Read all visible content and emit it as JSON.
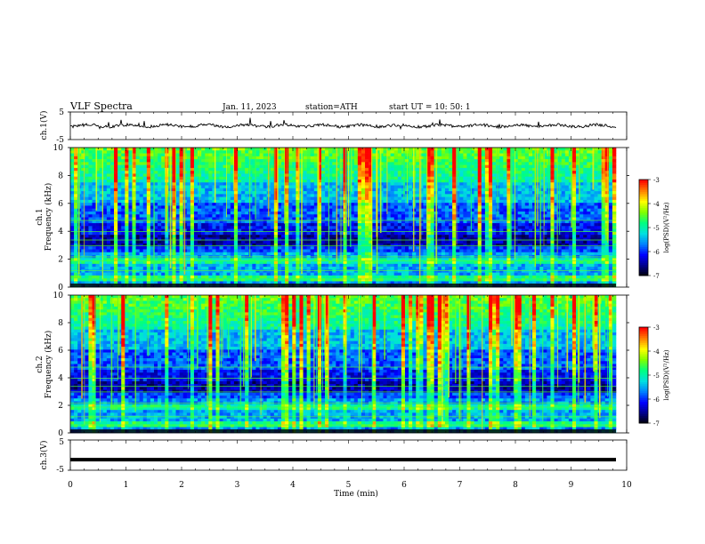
{
  "header": {
    "title": "VLF  Spectra",
    "date": "Jan. 11, 2023",
    "station": "station=ATH",
    "start": "start  UT  =    10: 50: 1"
  },
  "chart_data": [
    {
      "type": "line",
      "name": "ch1-waveform",
      "ylabel": "ch.1(V)",
      "ylim": [
        -5,
        5
      ],
      "yticks": [
        "5",
        "-5"
      ],
      "xlim": [
        0,
        10
      ],
      "description_values_approx": {
        "baseline": 0,
        "amplitude": 1.2
      }
    },
    {
      "type": "heatmap",
      "name": "ch1-spectrogram",
      "ylabel": "ch.1\nFrequency  (kHz)",
      "ylabel_line1": "ch.1",
      "ylabel_line2": "Frequency  (kHz)",
      "ylim": [
        0,
        10
      ],
      "yticks": [
        "0",
        "2",
        "4",
        "6",
        "8",
        "10"
      ],
      "xlim": [
        0,
        9.8
      ],
      "colorbar": {
        "label": "log(PSD)(V²/Hz)",
        "range": [
          -7,
          -3
        ],
        "ticks": [
          "-3",
          "-4",
          "-5",
          "-6",
          "-7"
        ]
      }
    },
    {
      "type": "heatmap",
      "name": "ch2-spectrogram",
      "ylabel_line1": "ch.2",
      "ylabel_line2": "Frequency  (kHz)",
      "ylim": [
        0,
        10
      ],
      "yticks": [
        "0",
        "2",
        "4",
        "6",
        "8",
        "10"
      ],
      "xlim": [
        0,
        9.8
      ],
      "colorbar": {
        "label": "log(PSD)(V²/Hz)",
        "range": [
          -7,
          -3
        ],
        "ticks": [
          "-3",
          "-4",
          "-5",
          "-6",
          "-7"
        ]
      }
    },
    {
      "type": "line",
      "name": "ch3-waveform",
      "ylabel": "ch.3(V)",
      "ylim": [
        -5,
        5
      ],
      "yticks": [
        "5",
        "-5"
      ],
      "xlim": [
        0,
        10
      ],
      "description_values_approx": {
        "baseline": -1.5
      }
    }
  ],
  "xaxis": {
    "label": "Time  (min)",
    "ticks": [
      "0",
      "1",
      "2",
      "3",
      "4",
      "5",
      "6",
      "7",
      "8",
      "9",
      "10"
    ],
    "range": [
      0,
      10
    ]
  },
  "colors": {
    "colormap": [
      "#000000",
      "#00008a",
      "#0000ff",
      "#0080ff",
      "#00e0e0",
      "#00ff80",
      "#80ff00",
      "#ffff00",
      "#ff8000",
      "#ff0000",
      "#ffffff"
    ]
  }
}
